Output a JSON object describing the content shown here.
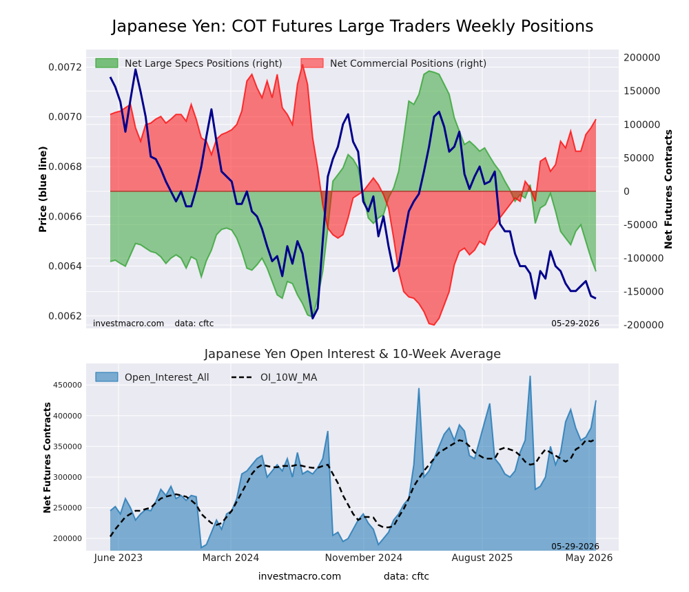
{
  "figure": {
    "title": "Japanese Yen: COT Futures Large Traders Weekly Positions",
    "footer_left": "investmacro.com",
    "footer_right": "data: cftc"
  },
  "chart_data": [
    {
      "type": "area",
      "title": "",
      "ylabel_left": "Price (blue line)",
      "ylabel_right": "Net Futures Contracts",
      "ylim_left": [
        0.00615,
        0.00727
      ],
      "ylim_right": [
        -205000,
        212000
      ],
      "yticks_left": [
        "0.0062",
        "0.0064",
        "0.0066",
        "0.0068",
        "0.0070",
        "0.0072"
      ],
      "yticks_right": [
        "-200000",
        "-150000",
        "-100000",
        "-50000",
        "0",
        "50000",
        "100000",
        "150000",
        "200000"
      ],
      "grid": true,
      "legend_position": "top-left",
      "annotation_left": "investmacro.com    data: cftc",
      "annotation_right": "05-29-2026",
      "x_start": "2023-06",
      "x_end": "2026-05-29",
      "series": [
        {
          "name": "Net Large Specs Positions (right)",
          "color": "#2ca02c",
          "axis": "right",
          "values": [
            -105000,
            -103000,
            -108000,
            -112000,
            -95000,
            -78000,
            -80000,
            -85000,
            -90000,
            -92000,
            -98000,
            -108000,
            -100000,
            -95000,
            -100000,
            -115000,
            -98000,
            -102000,
            -128000,
            -104000,
            -88000,
            -65000,
            -57000,
            -55000,
            -58000,
            -70000,
            -90000,
            -115000,
            -118000,
            -110000,
            -100000,
            -115000,
            -135000,
            -155000,
            -160000,
            -135000,
            -138000,
            -155000,
            -168000,
            -185000,
            -188000,
            -160000,
            -120000,
            -55000,
            15000,
            25000,
            35000,
            55000,
            48000,
            35000,
            -5000,
            -40000,
            -48000,
            -40000,
            -35000,
            -10000,
            5000,
            30000,
            80000,
            135000,
            130000,
            145000,
            175000,
            180000,
            178000,
            175000,
            160000,
            145000,
            110000,
            90000,
            70000,
            75000,
            68000,
            60000,
            65000,
            52000,
            40000,
            30000,
            15000,
            2000,
            -15000,
            -5000,
            -10000,
            10000,
            -48000,
            -25000,
            -20000,
            -3000,
            -30000,
            -60000,
            -70000,
            -80000,
            -60000,
            -50000,
            -75000,
            -100000,
            -120000
          ]
        },
        {
          "name": "Net Commercial Positions (right)",
          "color": "#ff0000",
          "axis": "right",
          "values": [
            115000,
            118000,
            120000,
            125000,
            130000,
            95000,
            75000,
            100000,
            102000,
            108000,
            112000,
            102000,
            108000,
            115000,
            115000,
            105000,
            130000,
            108000,
            80000,
            75000,
            55000,
            78000,
            85000,
            88000,
            92000,
            100000,
            120000,
            165000,
            175000,
            155000,
            140000,
            165000,
            140000,
            175000,
            125000,
            115000,
            100000,
            160000,
            190000,
            160000,
            80000,
            35000,
            -20000,
            -55000,
            -65000,
            -70000,
            -65000,
            -40000,
            -10000,
            -5000,
            0,
            10000,
            20000,
            10000,
            -5000,
            -25000,
            -70000,
            -120000,
            -150000,
            -158000,
            -160000,
            -168000,
            -180000,
            -198000,
            -200000,
            -190000,
            -170000,
            -150000,
            -110000,
            -90000,
            -85000,
            -95000,
            -88000,
            -75000,
            -80000,
            -60000,
            -52000,
            -40000,
            -30000,
            -20000,
            -10000,
            -15000,
            15000,
            5000,
            -15000,
            45000,
            50000,
            30000,
            40000,
            75000,
            65000,
            90000,
            60000,
            60000,
            85000,
            95000,
            108000
          ]
        },
        {
          "name": "Price",
          "color": "#00008b",
          "axis": "left",
          "values": [
            0.00716,
            0.00712,
            0.00706,
            0.00694,
            0.00707,
            0.00719,
            0.0071,
            0.007,
            0.00684,
            0.00683,
            0.00679,
            0.00674,
            0.0067,
            0.00666,
            0.0067,
            0.00664,
            0.00664,
            0.00671,
            0.0068,
            0.00692,
            0.00703,
            0.0069,
            0.00678,
            0.00676,
            0.00674,
            0.00665,
            0.00665,
            0.0067,
            0.00662,
            0.0066,
            0.00655,
            0.00648,
            0.00642,
            0.00644,
            0.00636,
            0.00648,
            0.00641,
            0.0065,
            0.00645,
            0.00632,
            0.00619,
            0.00623,
            0.0065,
            0.00676,
            0.00683,
            0.00688,
            0.00697,
            0.00701,
            0.0069,
            0.00686,
            0.00666,
            0.00662,
            0.00668,
            0.00652,
            0.0066,
            0.00648,
            0.00638,
            0.0064,
            0.00651,
            0.00662,
            0.00666,
            0.00669,
            0.00678,
            0.00688,
            0.007,
            0.00702,
            0.00696,
            0.00686,
            0.00688,
            0.00694,
            0.00677,
            0.00671,
            0.00676,
            0.0068,
            0.00673,
            0.00674,
            0.00678,
            0.00657,
            0.00654,
            0.00654,
            0.00645,
            0.0064,
            0.0064,
            0.00637,
            0.00627,
            0.00638,
            0.00635,
            0.00646,
            0.0064,
            0.00638,
            0.00633,
            0.0063,
            0.0063,
            0.00632,
            0.00634,
            0.00628,
            0.00627
          ]
        }
      ]
    },
    {
      "type": "area",
      "title": "Japanese Yen Open Interest & 10-Week Average",
      "ylabel": "Net Futures Contracts",
      "ylim": [
        180000,
        485000
      ],
      "yticks": [
        "200000",
        "250000",
        "300000",
        "350000",
        "400000",
        "450000"
      ],
      "xticks": [
        "June 2023",
        "March 2024",
        "November 2024",
        "August 2025",
        "May 2026"
      ],
      "grid": true,
      "legend_position": "top-left",
      "annotation_right": "05-29-2026",
      "series": [
        {
          "name": "Open_Interest_All",
          "color": "#1f77b4",
          "values": [
            245000,
            252000,
            240000,
            265000,
            250000,
            230000,
            240000,
            247000,
            245000,
            260000,
            280000,
            270000,
            285000,
            265000,
            270000,
            262000,
            270000,
            268000,
            185000,
            190000,
            210000,
            230000,
            215000,
            240000,
            245000,
            265000,
            305000,
            310000,
            320000,
            330000,
            335000,
            300000,
            310000,
            320000,
            310000,
            330000,
            300000,
            340000,
            305000,
            310000,
            305000,
            315000,
            330000,
            375000,
            205000,
            210000,
            195000,
            200000,
            215000,
            230000,
            240000,
            225000,
            215000,
            190000,
            200000,
            210000,
            230000,
            240000,
            255000,
            265000,
            320000,
            445000,
            300000,
            310000,
            330000,
            350000,
            370000,
            380000,
            360000,
            385000,
            375000,
            335000,
            330000,
            360000,
            390000,
            420000,
            330000,
            320000,
            305000,
            300000,
            310000,
            340000,
            360000,
            465000,
            280000,
            285000,
            300000,
            350000,
            320000,
            340000,
            390000,
            410000,
            380000,
            360000,
            365000,
            380000,
            425000
          ]
        },
        {
          "name": "OI_10W_MA",
          "color": "#000000",
          "values": [
            203000,
            215000,
            225000,
            235000,
            240000,
            245000,
            245000,
            248000,
            250000,
            258000,
            265000,
            268000,
            270000,
            272000,
            270000,
            268000,
            262000,
            255000,
            240000,
            232000,
            225000,
            222000,
            225000,
            235000,
            245000,
            260000,
            275000,
            290000,
            305000,
            315000,
            320000,
            318000,
            316000,
            316000,
            318000,
            318000,
            318000,
            320000,
            318000,
            316000,
            315000,
            315000,
            318000,
            320000,
            305000,
            290000,
            270000,
            255000,
            240000,
            230000,
            235000,
            235000,
            234000,
            222000,
            218000,
            218000,
            220000,
            235000,
            248000,
            265000,
            285000,
            298000,
            310000,
            320000,
            330000,
            340000,
            345000,
            350000,
            355000,
            360000,
            358000,
            350000,
            340000,
            335000,
            330000,
            330000,
            330000,
            345000,
            348000,
            345000,
            342000,
            335000,
            325000,
            320000,
            322000,
            335000,
            345000,
            340000,
            335000,
            330000,
            325000,
            330000,
            345000,
            350000,
            360000,
            358000,
            362000
          ]
        }
      ]
    }
  ]
}
